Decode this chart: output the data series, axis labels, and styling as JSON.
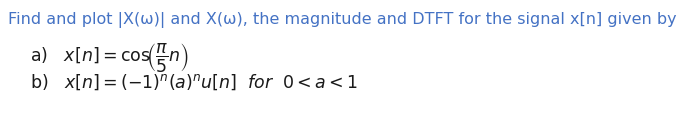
{
  "background_color": "#ffffff",
  "title_line": "Find and plot |X(ω)| and X(ω), the magnitude and DTFT for the signal x[n] given by",
  "title_color": "#4472c4",
  "math_color": "#1a1a1a",
  "title_fontsize": 11.5,
  "items_fontsize": 12.5,
  "font_family": "sans-serif"
}
